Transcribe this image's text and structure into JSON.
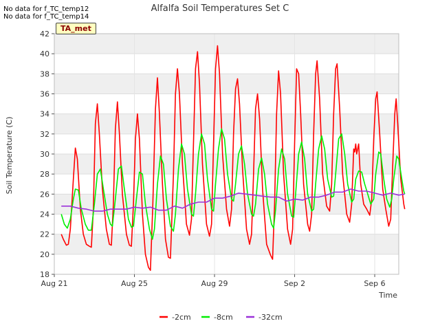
{
  "notes": [
    "No data for f_TC_temp12",
    "No data for f_TC_temp14"
  ],
  "badge": "TA_met",
  "chart_data": {
    "type": "line",
    "title": "Alfalfa Soil Temperatures Set C",
    "xlabel": "Time",
    "ylabel": "Soil Temperature (C)",
    "xlim": [
      0,
      17.2
    ],
    "ylim": [
      18,
      42
    ],
    "x_ticks": [
      {
        "day": 0,
        "label": "Aug 21"
      },
      {
        "day": 4,
        "label": "Aug 25"
      },
      {
        "day": 8,
        "label": "Aug 29"
      },
      {
        "day": 12,
        "label": "Sep 2"
      },
      {
        "day": 16,
        "label": "Sep 6"
      }
    ],
    "y_ticks": [
      18,
      20,
      22,
      24,
      26,
      28,
      30,
      32,
      34,
      36,
      38,
      40,
      42
    ],
    "grid": true,
    "legend_position": "bottom",
    "series": [
      {
        "name": "-2cm",
        "color": "#ff0000",
        "points": [
          [
            0.35,
            22.0
          ],
          [
            0.45,
            21.5
          ],
          [
            0.6,
            20.9
          ],
          [
            0.7,
            21.0
          ],
          [
            0.8,
            22.5
          ],
          [
            0.95,
            27.5
          ],
          [
            1.05,
            30.6
          ],
          [
            1.15,
            29.5
          ],
          [
            1.3,
            24.5
          ],
          [
            1.45,
            22.0
          ],
          [
            1.6,
            21.0
          ],
          [
            1.75,
            20.8
          ],
          [
            1.85,
            20.7
          ],
          [
            1.95,
            24.5
          ],
          [
            2.05,
            33.0
          ],
          [
            2.15,
            35.0
          ],
          [
            2.25,
            32.0
          ],
          [
            2.4,
            26.5
          ],
          [
            2.6,
            22.5
          ],
          [
            2.75,
            21.0
          ],
          [
            2.85,
            20.9
          ],
          [
            2.95,
            25.0
          ],
          [
            3.05,
            32.5
          ],
          [
            3.15,
            35.2
          ],
          [
            3.25,
            32.0
          ],
          [
            3.4,
            26.0
          ],
          [
            3.6,
            22.0
          ],
          [
            3.75,
            20.9
          ],
          [
            3.85,
            20.8
          ],
          [
            3.95,
            25.0
          ],
          [
            4.05,
            31.5
          ],
          [
            4.15,
            34.0
          ],
          [
            4.25,
            31.5
          ],
          [
            4.4,
            24.0
          ],
          [
            4.55,
            20.0
          ],
          [
            4.7,
            18.7
          ],
          [
            4.8,
            18.4
          ],
          [
            4.92,
            25.0
          ],
          [
            5.05,
            34.5
          ],
          [
            5.15,
            37.6
          ],
          [
            5.25,
            34.0
          ],
          [
            5.4,
            27.0
          ],
          [
            5.55,
            21.5
          ],
          [
            5.7,
            19.7
          ],
          [
            5.8,
            19.6
          ],
          [
            5.95,
            28.0
          ],
          [
            6.05,
            36.0
          ],
          [
            6.15,
            38.5
          ],
          [
            6.25,
            36.0
          ],
          [
            6.4,
            29.0
          ],
          [
            6.6,
            23.0
          ],
          [
            6.75,
            21.9
          ],
          [
            6.85,
            23.5
          ],
          [
            6.95,
            31.0
          ],
          [
            7.05,
            38.5
          ],
          [
            7.15,
            40.2
          ],
          [
            7.25,
            37.0
          ],
          [
            7.4,
            29.0
          ],
          [
            7.6,
            23.0
          ],
          [
            7.75,
            21.8
          ],
          [
            7.85,
            23.0
          ],
          [
            7.95,
            31.0
          ],
          [
            8.05,
            38.5
          ],
          [
            8.15,
            40.8
          ],
          [
            8.25,
            38.0
          ],
          [
            8.4,
            30.0
          ],
          [
            8.6,
            24.5
          ],
          [
            8.75,
            22.8
          ],
          [
            8.85,
            24.5
          ],
          [
            8.95,
            32.0
          ],
          [
            9.05,
            36.5
          ],
          [
            9.15,
            37.5
          ],
          [
            9.25,
            35.0
          ],
          [
            9.4,
            28.5
          ],
          [
            9.6,
            22.5
          ],
          [
            9.75,
            21.0
          ],
          [
            9.85,
            22.0
          ],
          [
            9.95,
            28.0
          ],
          [
            10.05,
            34.5
          ],
          [
            10.15,
            36.0
          ],
          [
            10.25,
            33.5
          ],
          [
            10.4,
            26.5
          ],
          [
            10.6,
            21.0
          ],
          [
            10.8,
            19.9
          ],
          [
            10.9,
            19.5
          ],
          [
            11.0,
            25.0
          ],
          [
            11.1,
            34.0
          ],
          [
            11.2,
            38.3
          ],
          [
            11.3,
            36.0
          ],
          [
            11.45,
            28.0
          ],
          [
            11.65,
            22.5
          ],
          [
            11.8,
            21.0
          ],
          [
            11.9,
            22.5
          ],
          [
            12.0,
            31.0
          ],
          [
            12.1,
            38.5
          ],
          [
            12.2,
            38.0
          ],
          [
            12.3,
            34.0
          ],
          [
            12.45,
            27.0
          ],
          [
            12.65,
            23.0
          ],
          [
            12.75,
            22.3
          ],
          [
            12.85,
            24.0
          ],
          [
            12.95,
            32.0
          ],
          [
            13.05,
            38.0
          ],
          [
            13.12,
            39.3
          ],
          [
            13.25,
            35.5
          ],
          [
            13.4,
            28.0
          ],
          [
            13.6,
            24.8
          ],
          [
            13.75,
            24.3
          ],
          [
            13.85,
            27.0
          ],
          [
            13.95,
            34.0
          ],
          [
            14.05,
            38.5
          ],
          [
            14.12,
            39.0
          ],
          [
            14.25,
            34.5
          ],
          [
            14.4,
            28.0
          ],
          [
            14.6,
            24.0
          ],
          [
            14.75,
            23.2
          ],
          [
            14.85,
            25.0
          ],
          [
            14.95,
            30.5
          ],
          [
            15.0,
            30.2
          ],
          [
            15.05,
            31.0
          ],
          [
            15.1,
            30.0
          ],
          [
            15.2,
            31.0
          ],
          [
            15.3,
            27.0
          ],
          [
            15.45,
            25.0
          ],
          [
            15.6,
            24.5
          ],
          [
            15.75,
            23.9
          ],
          [
            15.85,
            25.5
          ],
          [
            15.95,
            31.5
          ],
          [
            16.05,
            35.5
          ],
          [
            16.12,
            36.2
          ],
          [
            16.25,
            32.0
          ],
          [
            16.4,
            26.5
          ],
          [
            16.55,
            24.5
          ],
          [
            16.7,
            22.8
          ],
          [
            16.8,
            23.5
          ],
          [
            16.9,
            29.0
          ],
          [
            17.0,
            34.0
          ],
          [
            17.07,
            35.5
          ],
          [
            17.15,
            33.0
          ],
          [
            17.3,
            27.5
          ],
          [
            17.45,
            25.0
          ],
          [
            17.5,
            24.5
          ]
        ]
      },
      {
        "name": "-8cm",
        "color": "#00ee00",
        "points": [
          [
            0.35,
            24.0
          ],
          [
            0.5,
            23.0
          ],
          [
            0.65,
            22.6
          ],
          [
            0.8,
            23.5
          ],
          [
            0.95,
            25.5
          ],
          [
            1.05,
            26.5
          ],
          [
            1.2,
            26.4
          ],
          [
            1.35,
            24.5
          ],
          [
            1.55,
            23.0
          ],
          [
            1.7,
            22.4
          ],
          [
            1.85,
            22.4
          ],
          [
            2.0,
            25.0
          ],
          [
            2.15,
            28.0
          ],
          [
            2.3,
            28.5
          ],
          [
            2.45,
            26.5
          ],
          [
            2.65,
            24.0
          ],
          [
            2.8,
            23.0
          ],
          [
            2.9,
            22.8
          ],
          [
            3.05,
            25.5
          ],
          [
            3.2,
            28.5
          ],
          [
            3.35,
            28.8
          ],
          [
            3.5,
            26.5
          ],
          [
            3.7,
            23.5
          ],
          [
            3.85,
            22.7
          ],
          [
            3.95,
            22.8
          ],
          [
            4.1,
            25.5
          ],
          [
            4.25,
            28.2
          ],
          [
            4.4,
            28.0
          ],
          [
            4.55,
            25.0
          ],
          [
            4.75,
            22.5
          ],
          [
            4.9,
            21.5
          ],
          [
            5.0,
            22.5
          ],
          [
            5.15,
            27.0
          ],
          [
            5.3,
            29.8
          ],
          [
            5.45,
            29.0
          ],
          [
            5.6,
            25.5
          ],
          [
            5.8,
            22.8
          ],
          [
            5.95,
            22.3
          ],
          [
            6.05,
            24.0
          ],
          [
            6.2,
            28.5
          ],
          [
            6.35,
            31.0
          ],
          [
            6.5,
            30.0
          ],
          [
            6.65,
            26.5
          ],
          [
            6.85,
            24.0
          ],
          [
            6.95,
            23.8
          ],
          [
            7.05,
            26.0
          ],
          [
            7.2,
            30.0
          ],
          [
            7.35,
            32.0
          ],
          [
            7.5,
            31.0
          ],
          [
            7.65,
            27.5
          ],
          [
            7.85,
            24.5
          ],
          [
            7.95,
            24.3
          ],
          [
            8.05,
            27.0
          ],
          [
            8.2,
            30.5
          ],
          [
            8.35,
            32.5
          ],
          [
            8.5,
            31.5
          ],
          [
            8.65,
            28.0
          ],
          [
            8.85,
            25.5
          ],
          [
            8.95,
            25.3
          ],
          [
            9.05,
            27.0
          ],
          [
            9.2,
            30.0
          ],
          [
            9.35,
            30.8
          ],
          [
            9.5,
            29.0
          ],
          [
            9.65,
            26.0
          ],
          [
            9.85,
            24.0
          ],
          [
            9.95,
            23.8
          ],
          [
            10.05,
            25.0
          ],
          [
            10.2,
            28.5
          ],
          [
            10.35,
            29.6
          ],
          [
            10.5,
            28.0
          ],
          [
            10.65,
            25.0
          ],
          [
            10.85,
            23.0
          ],
          [
            10.95,
            22.6
          ],
          [
            11.05,
            24.5
          ],
          [
            11.2,
            28.5
          ],
          [
            11.35,
            30.5
          ],
          [
            11.5,
            29.5
          ],
          [
            11.65,
            26.0
          ],
          [
            11.85,
            23.8
          ],
          [
            11.95,
            23.7
          ],
          [
            12.05,
            26.0
          ],
          [
            12.2,
            30.0
          ],
          [
            12.35,
            31.2
          ],
          [
            12.5,
            29.5
          ],
          [
            12.65,
            26.0
          ],
          [
            12.85,
            24.3
          ],
          [
            12.95,
            24.5
          ],
          [
            13.05,
            27.0
          ],
          [
            13.2,
            30.5
          ],
          [
            13.35,
            31.8
          ],
          [
            13.5,
            30.5
          ],
          [
            13.65,
            27.5
          ],
          [
            13.85,
            25.7
          ],
          [
            13.95,
            25.8
          ],
          [
            14.05,
            28.0
          ],
          [
            14.2,
            31.5
          ],
          [
            14.35,
            32.0
          ],
          [
            14.5,
            30.0
          ],
          [
            14.65,
            27.0
          ],
          [
            14.85,
            25.2
          ],
          [
            14.95,
            25.5
          ],
          [
            15.05,
            27.5
          ],
          [
            15.2,
            28.3
          ],
          [
            15.35,
            28.2
          ],
          [
            15.5,
            27.0
          ],
          [
            15.65,
            26.0
          ],
          [
            15.8,
            25.0
          ],
          [
            15.95,
            25.5
          ],
          [
            16.05,
            28.0
          ],
          [
            16.2,
            30.2
          ],
          [
            16.3,
            30.0
          ],
          [
            16.45,
            27.5
          ],
          [
            16.6,
            25.5
          ],
          [
            16.75,
            24.7
          ],
          [
            16.85,
            25.5
          ],
          [
            16.95,
            27.5
          ],
          [
            17.1,
            29.8
          ],
          [
            17.2,
            29.5
          ],
          [
            17.35,
            27.5
          ],
          [
            17.45,
            26.3
          ],
          [
            17.5,
            26.0
          ]
        ]
      },
      {
        "name": "-32cm",
        "color": "#9b30d9",
        "points": [
          [
            0.35,
            24.8
          ],
          [
            0.8,
            24.8
          ],
          [
            1.2,
            24.6
          ],
          [
            1.6,
            24.5
          ],
          [
            2.0,
            24.3
          ],
          [
            2.4,
            24.3
          ],
          [
            2.8,
            24.5
          ],
          [
            3.2,
            24.5
          ],
          [
            3.6,
            24.5
          ],
          [
            4.0,
            24.7
          ],
          [
            4.4,
            24.6
          ],
          [
            4.8,
            24.7
          ],
          [
            5.2,
            24.4
          ],
          [
            5.6,
            24.4
          ],
          [
            6.0,
            24.8
          ],
          [
            6.4,
            24.6
          ],
          [
            6.8,
            25.0
          ],
          [
            7.2,
            25.2
          ],
          [
            7.6,
            25.2
          ],
          [
            8.0,
            25.6
          ],
          [
            8.4,
            25.6
          ],
          [
            8.8,
            25.8
          ],
          [
            9.2,
            26.1
          ],
          [
            9.6,
            26.0
          ],
          [
            10.0,
            25.9
          ],
          [
            10.4,
            25.8
          ],
          [
            10.8,
            25.7
          ],
          [
            11.2,
            25.7
          ],
          [
            11.6,
            25.3
          ],
          [
            12.0,
            25.5
          ],
          [
            12.4,
            25.4
          ],
          [
            12.8,
            25.7
          ],
          [
            13.2,
            25.7
          ],
          [
            13.6,
            25.9
          ],
          [
            14.0,
            26.2
          ],
          [
            14.4,
            26.2
          ],
          [
            14.8,
            26.5
          ],
          [
            15.2,
            26.3
          ],
          [
            15.6,
            26.3
          ],
          [
            16.0,
            26.1
          ],
          [
            16.4,
            25.9
          ],
          [
            16.8,
            26.1
          ],
          [
            17.2,
            25.9
          ],
          [
            17.5,
            26.0
          ]
        ]
      }
    ]
  }
}
